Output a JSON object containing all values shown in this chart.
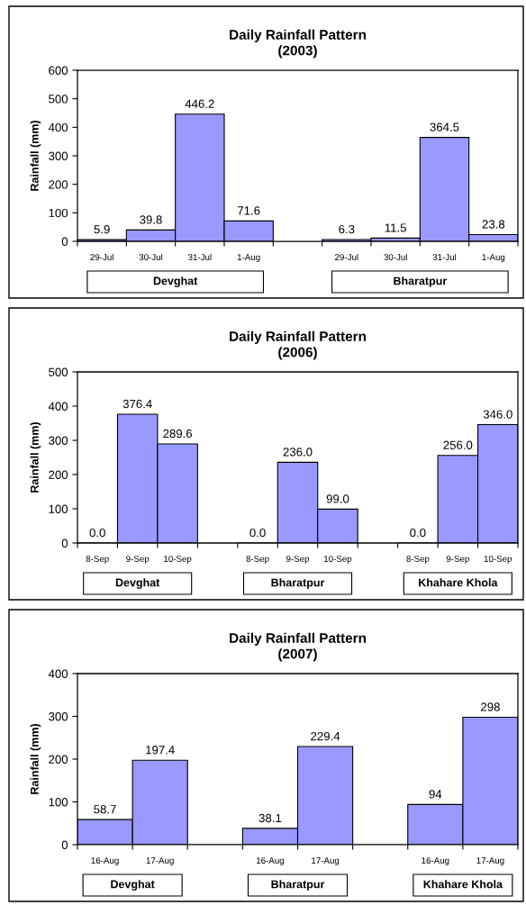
{
  "chart_data": [
    {
      "type": "bar",
      "title": "Daily Rainfall Pattern\n(2003)",
      "ylabel": "Rainfall (mm)",
      "categories": [
        "29-Jul",
        "30-Jul",
        "31-Jul",
        "1-Aug",
        null,
        "29-Jul",
        "30-Jul",
        "31-Jul",
        "1-Aug"
      ],
      "values": [
        5.9,
        39.8,
        446.2,
        71.6,
        null,
        6.3,
        11.5,
        364.5,
        23.8
      ],
      "value_labels": [
        "5.9",
        "39.8",
        "446.2",
        "71.6",
        null,
        "6.3",
        "11.5",
        "364.5",
        "23.8"
      ],
      "color": "#9999ff",
      "ylim": [
        0,
        600
      ],
      "yticks": [
        0,
        100,
        200,
        300,
        400,
        500,
        600
      ],
      "annotations": [
        "Devghat",
        "Bharatpur"
      ]
    },
    {
      "type": "bar",
      "title": "Daily Rainfall Pattern\n(2006)",
      "ylabel": "Rainfall (mm)",
      "categories": [
        "8-Sep",
        "9-Sep",
        "10-Sep",
        null,
        "8-Sep",
        "9-Sep",
        "10-Sep",
        null,
        "8-Sep",
        "9-Sep",
        "10-Sep"
      ],
      "values": [
        0.0,
        376.4,
        289.6,
        null,
        0.0,
        236.0,
        99.0,
        null,
        0.0,
        256.0,
        346.0
      ],
      "value_labels": [
        "0.0",
        "376.4",
        "289.6",
        null,
        "0.0",
        "236.0",
        "99.0",
        null,
        "0.0",
        "256.0",
        "346.0"
      ],
      "color": "#9999ff",
      "ylim": [
        0,
        500
      ],
      "yticks": [
        0,
        100,
        200,
        300,
        400,
        500
      ],
      "annotations": [
        "Devghat",
        "Bharatpur",
        "Khahare Khola"
      ]
    },
    {
      "type": "bar",
      "title": "Daily Rainfall Pattern\n(2007)",
      "ylabel": "Rainfall (mm)",
      "categories": [
        "16-Aug",
        "17-Aug",
        null,
        "16-Aug",
        "17-Aug",
        null,
        "16-Aug",
        "17-Aug"
      ],
      "values": [
        58.7,
        197.4,
        null,
        38.1,
        229.4,
        null,
        94,
        298
      ],
      "value_labels": [
        "58.7",
        "197.4",
        null,
        "38.1",
        "229.4",
        null,
        "94",
        "298"
      ],
      "color": "#9999ff",
      "ylim": [
        0,
        400
      ],
      "yticks": [
        0,
        100,
        200,
        300,
        400
      ],
      "annotations": [
        "Devghat",
        "Bharatpur",
        "Khahare Khola"
      ]
    }
  ]
}
